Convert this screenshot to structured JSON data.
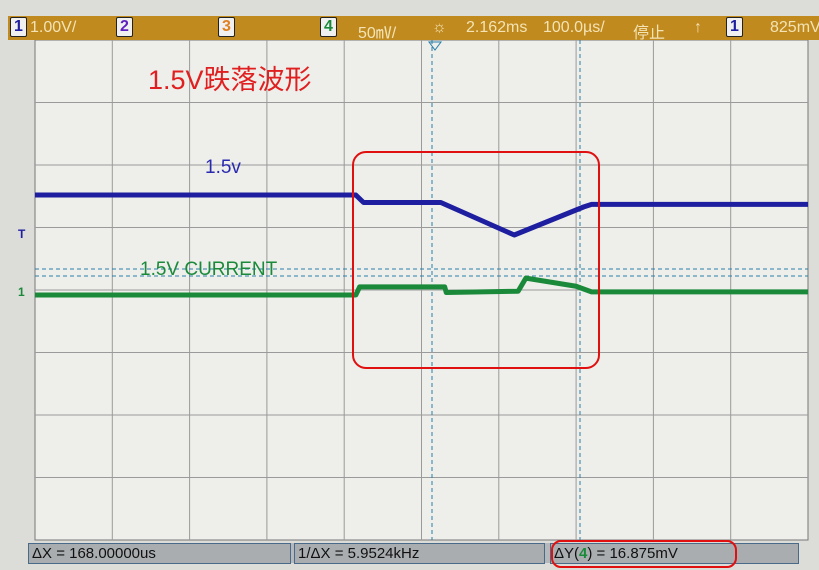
{
  "topbar": {
    "ch1": "1",
    "ch1_scale": "1.00V/",
    "ch2": "2",
    "ch3": "3",
    "ch4": "4",
    "ch4_scale": "50㎷/",
    "trigger_icon": "sun-icon",
    "delay": "2.162ms",
    "timebase": "100.0µs/",
    "run_state": "停止",
    "edge_icon": "rising-edge-icon",
    "trig_source": "1",
    "trig_level": "825mV"
  },
  "annotation": {
    "title": "1.5V跌落波形",
    "blue_label": "1.5v",
    "green_label": "1.5V CURRENT"
  },
  "measurements": {
    "dx": "ΔX = 168.00000us",
    "inv_dx": "1/ΔX = 5.9524kHz",
    "dy_prefix": "ΔY(",
    "dy_ch": "4",
    "dy_suffix": ") = 16.875mV"
  },
  "colors": {
    "ch1": "#1e1ea0",
    "ch4": "#1a8a3a",
    "highlight": "#e01010",
    "cursor": "#2a7fa8"
  },
  "chart_data": {
    "type": "line",
    "grid": true,
    "xlabel": "",
    "ylabel": "",
    "xlim": [
      -500,
      500
    ],
    "ylim": [
      -4,
      4
    ],
    "series": [
      {
        "name": "1.5v",
        "color": "#1e1ea0",
        "x": [
          -500,
          -85,
          -75,
          25,
          120,
          210,
          220,
          500
        ],
        "y": [
          1.52,
          1.52,
          1.4,
          1.4,
          0.88,
          1.33,
          1.37,
          1.37
        ]
      },
      {
        "name": "1.5V CURRENT",
        "color": "#1a8a3a",
        "x": [
          -500,
          -85,
          -80,
          30,
          32,
          125,
          135,
          200,
          220,
          500
        ],
        "y": [
          -0.08,
          -0.08,
          0.05,
          0.05,
          -0.04,
          -0.02,
          0.19,
          0.06,
          -0.03,
          -0.03
        ]
      }
    ]
  }
}
